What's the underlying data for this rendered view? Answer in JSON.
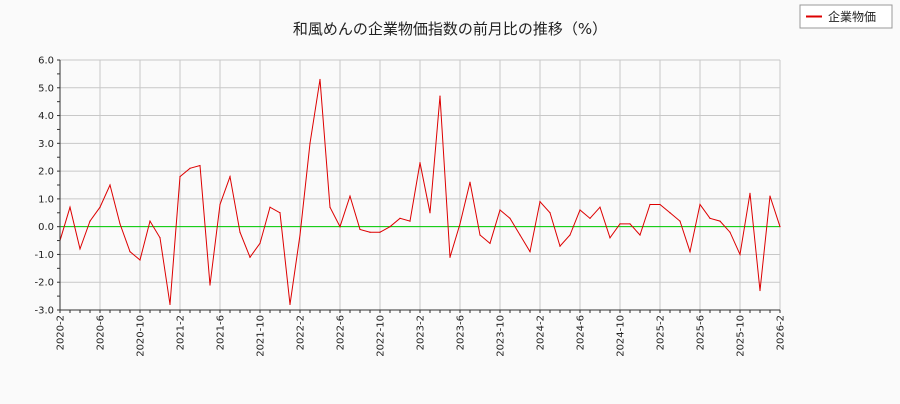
{
  "chart_data": {
    "type": "line",
    "title": "和風めんの企業物価指数の前月比の推移（%）",
    "xlabel": "",
    "ylabel": "",
    "ylim": [
      -3.0,
      6.0
    ],
    "yticks": [
      "-3.0",
      "-2.0",
      "-1.0",
      "0.0",
      "1.0",
      "2.0",
      "3.0",
      "4.0",
      "5.0",
      "6.0"
    ],
    "xticks": [
      "2020-2",
      "2020-6",
      "2020-10",
      "2021-2",
      "2021-6",
      "2021-10",
      "2022-2",
      "2022-6",
      "2022-10",
      "2023-2",
      "2023-6",
      "2023-10",
      "2024-2",
      "2024-6",
      "2024-10",
      "2025-2",
      "2025-6",
      "2025-10",
      "2026-2"
    ],
    "x_start": "2020-2",
    "grid": true,
    "legend_position": "top-right",
    "baseline": {
      "value": 0,
      "color": "#00cc00"
    },
    "series": [
      {
        "name": "企業物価",
        "color": "#dd0000",
        "values": [
          -0.5,
          0.7,
          -0.8,
          0.2,
          0.7,
          1.5,
          0.1,
          -0.9,
          -1.2,
          0.2,
          -0.4,
          -2.8,
          1.8,
          2.1,
          2.2,
          -2.1,
          0.8,
          1.8,
          -0.2,
          -1.1,
          -0.6,
          0.7,
          0.5,
          -2.8,
          -0.3,
          3.0,
          5.3,
          0.7,
          0.0,
          1.1,
          -0.1,
          -0.2,
          -0.2,
          0.0,
          0.3,
          0.2,
          2.3,
          0.5,
          4.7,
          -1.1,
          0.1,
          1.6,
          -0.3,
          -0.6,
          0.6,
          0.3,
          -0.3,
          -0.9,
          0.9,
          0.5,
          -0.7,
          -0.3,
          0.6,
          0.3,
          0.7,
          -0.4,
          0.1,
          0.1,
          -0.3,
          0.8,
          0.8,
          0.5,
          0.2,
          -0.9,
          0.8,
          0.3,
          0.2,
          -0.2,
          -1.0,
          1.2,
          -2.3,
          1.1,
          0.0
        ]
      }
    ]
  }
}
